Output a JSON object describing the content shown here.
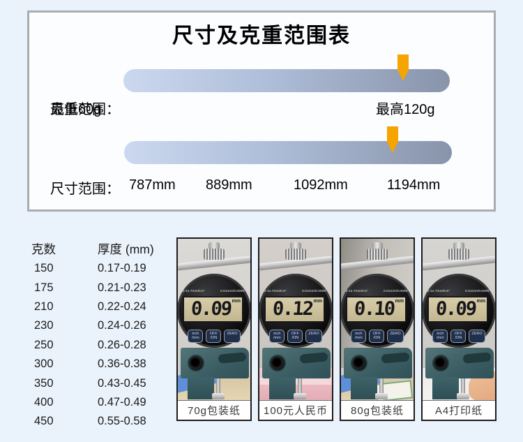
{
  "panel": {
    "title": "尺寸及克重范围表",
    "weight_row": {
      "label": "克重范围：",
      "min_label": "最低60g",
      "max_label": "最高120g"
    },
    "size_row": {
      "label": "尺寸范围：",
      "values": [
        "787mm",
        "889mm",
        "1092mm",
        "1194mm"
      ]
    },
    "colors": {
      "accent_arrow": "#F6A400",
      "bar_gradient_start": "#CBD8EF",
      "bar_gradient_end": "#8894AA"
    }
  },
  "spec_table": {
    "headers": [
      "克数",
      "厚度 (mm)"
    ],
    "rows": [
      [
        "150",
        "0.17-0.19"
      ],
      [
        "175",
        "0.21-0.23"
      ],
      [
        "210",
        "0.22-0.24"
      ],
      [
        "230",
        "0.24-0.26"
      ],
      [
        "250",
        "0.26-0.28"
      ],
      [
        "300",
        "0.36-0.38"
      ],
      [
        "350",
        "0.43-0.45"
      ],
      [
        "400",
        "0.47-0.49"
      ],
      [
        "450",
        "0.55-0.58"
      ]
    ]
  },
  "photos": {
    "gauge": {
      "range_spec": "0-12.7mm/0.5\"",
      "resolution_spec": "0.01mm/0.0005\"",
      "unit": "mm",
      "buttons": {
        "b1_line1": "inch",
        "b1_line2": "/mm",
        "b2_line1": "OFF",
        "b2_line2": "/ON",
        "b3": "ZERO"
      }
    },
    "items": [
      {
        "reading": "0.09",
        "caption": "70g包装纸"
      },
      {
        "reading": "0.12",
        "caption": "100元人民币"
      },
      {
        "reading": "0.10",
        "caption": "80g包装纸"
      },
      {
        "reading": "0.09",
        "caption": "A4打印纸"
      }
    ]
  }
}
